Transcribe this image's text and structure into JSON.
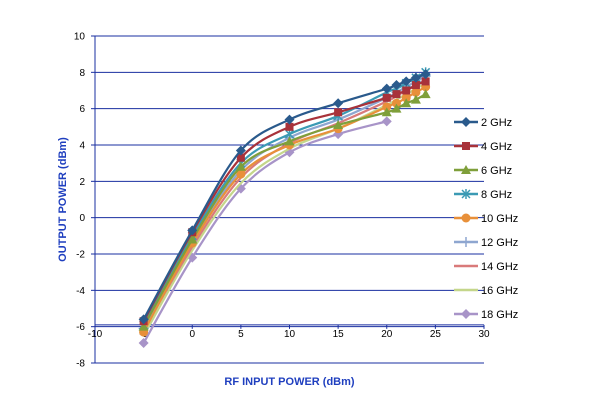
{
  "chart_data": {
    "type": "line",
    "title": "",
    "xlabel": "RF INPUT POWER (dBm)",
    "ylabel": "OUTPUT POWER (dBm)",
    "xlim": [
      -10,
      30
    ],
    "ylim": [
      -8,
      10
    ],
    "x_ticks": [
      "-10",
      "-5",
      "0",
      "5",
      "10",
      "15",
      "20",
      "25",
      "30"
    ],
    "y_ticks": [
      "-8",
      "-6",
      "-4",
      "-2",
      "0",
      "2",
      "4",
      "6",
      "8",
      "10"
    ],
    "grid": "horizontal",
    "legend": "right",
    "series": [
      {
        "name": "2 GHz",
        "color": "#2a5a8c",
        "marker": "diamond",
        "x": [
          -5,
          0,
          5,
          10,
          15,
          20,
          21,
          22,
          23,
          24
        ],
        "y": [
          -5.6,
          -0.7,
          3.7,
          5.4,
          6.3,
          7.1,
          7.3,
          7.5,
          7.7,
          7.9
        ]
      },
      {
        "name": "4 GHz",
        "color": "#a8323a",
        "marker": "square",
        "x": [
          -5,
          0,
          5,
          10,
          15,
          20,
          21,
          22,
          23,
          24
        ],
        "y": [
          -5.7,
          -0.8,
          3.3,
          5.0,
          5.8,
          6.6,
          6.8,
          7.0,
          7.3,
          7.5
        ]
      },
      {
        "name": "6 GHz",
        "color": "#7f9f3a",
        "marker": "triangle",
        "x": [
          -5,
          0,
          5,
          10,
          15,
          20,
          21,
          22,
          23,
          24
        ],
        "y": [
          -6.0,
          -1.2,
          2.8,
          4.2,
          5.1,
          5.8,
          6.0,
          6.3,
          6.5,
          6.8
        ]
      },
      {
        "name": "8 GHz",
        "color": "#3b9ab4",
        "marker": "asterisk",
        "x": [
          -5,
          0,
          5,
          10,
          15,
          20,
          21,
          22,
          23,
          24
        ],
        "y": [
          -5.9,
          -1.0,
          3.0,
          4.6,
          5.6,
          6.9,
          7.1,
          7.4,
          7.7,
          8.0
        ]
      },
      {
        "name": "10 GHz",
        "color": "#e8903a",
        "marker": "circle",
        "x": [
          -5,
          0,
          5,
          10,
          15,
          20,
          21,
          22,
          23,
          24
        ],
        "y": [
          -6.3,
          -1.4,
          2.4,
          4.0,
          4.9,
          6.1,
          6.3,
          6.6,
          6.9,
          7.2
        ]
      },
      {
        "name": "12 GHz",
        "color": "#8ea6d0",
        "marker": "plus",
        "x": [
          -5,
          0,
          5,
          10,
          15,
          20,
          21,
          22,
          23,
          24
        ],
        "y": [
          -6.1,
          -1.3,
          2.6,
          4.4,
          5.4,
          6.6,
          6.9,
          7.2,
          7.5,
          7.8
        ]
      },
      {
        "name": "14 GHz",
        "color": "#d97a7a",
        "marker": "none",
        "x": [
          -5,
          0,
          5,
          10,
          15,
          20,
          21,
          22,
          23,
          24
        ],
        "y": [
          -6.2,
          -1.6,
          2.2,
          4.1,
          5.2,
          6.4,
          6.7,
          7.0,
          7.3,
          7.6
        ]
      },
      {
        "name": "16 GHz",
        "color": "#c4d68a",
        "marker": "none",
        "x": [
          -5,
          0,
          5,
          10,
          15,
          20,
          21,
          22,
          23,
          24
        ],
        "y": [
          -6.5,
          -1.8,
          1.9,
          3.8,
          4.9,
          6.2,
          6.5,
          6.8,
          7.1,
          7.4
        ]
      },
      {
        "name": "18 GHz",
        "color": "#a894c8",
        "marker": "diamond",
        "x": [
          -5,
          0,
          5,
          10,
          15,
          20
        ],
        "y": [
          -6.9,
          -2.2,
          1.6,
          3.6,
          4.6,
          5.3
        ]
      }
    ]
  }
}
